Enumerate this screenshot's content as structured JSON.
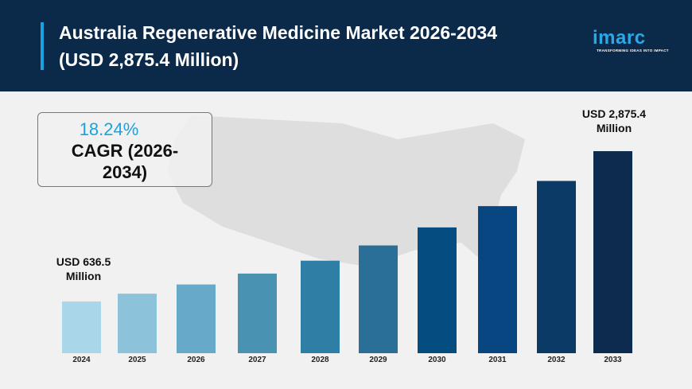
{
  "header": {
    "title_line1": "Australia Regenerative Medicine Market 2026-2034",
    "title_line2": "(USD 2,875.4 Million)",
    "logo": "imarc",
    "logo_tagline": "TRANSFORMING IDEAS INTO IMPACT"
  },
  "cagr": {
    "value": "18.24%",
    "label_line1": "CAGR (2026-",
    "label_line2": "2034)"
  },
  "annotations": {
    "start": [
      "USD 636.5",
      "Million"
    ],
    "end": [
      "USD 2,875.4",
      "Million"
    ]
  },
  "colors": {
    "header": "#0b2a4a",
    "accent": "#1aa3e0",
    "bars": [
      "#a9d6e8",
      "#8cc3db",
      "#66a9c8",
      "#4a92b2",
      "#2f7ea5",
      "#2a6f98",
      "#034d80",
      "#074680",
      "#0c3a66",
      "#0d2b4e"
    ]
  },
  "chart_data": {
    "type": "bar",
    "title": "Australia Regenerative Medicine Market 2026-2034",
    "categories": [
      "2024",
      "2025",
      "2026",
      "2027",
      "2028",
      "2029",
      "2030",
      "2031",
      "2032",
      "2033"
    ],
    "values": [
      636.5,
      752.6,
      889.9,
      1052.2,
      1244.1,
      1471.0,
      1739.4,
      2056.6,
      2431.8,
      2875.4
    ],
    "unit": "USD Million",
    "xlabel": "",
    "ylabel": "",
    "grid": false,
    "legend": "none"
  }
}
